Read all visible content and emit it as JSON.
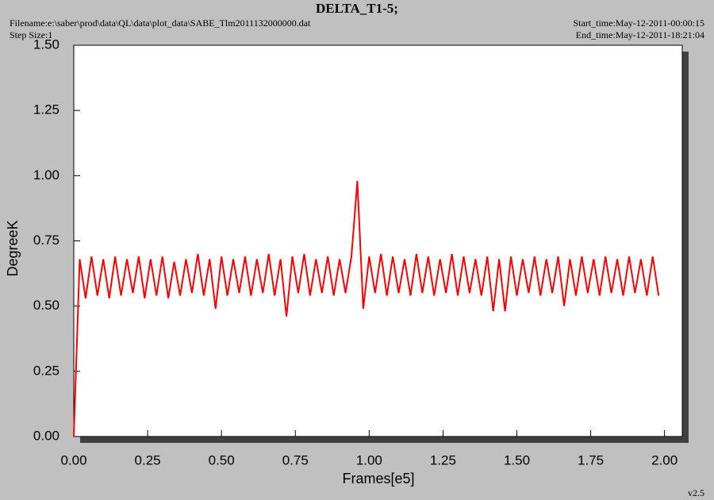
{
  "chart_data": {
    "type": "line",
    "title": "DELTA_T1-5;",
    "filename": "Filename:e:\\saber\\prod\\data\\QL\\data\\plot_data\\SABE_Tlm2011132000000.dat",
    "step_size": "Step Size:1",
    "start_time": "Start_time:May-12-2011-00:00:15",
    "end_time": "End_time:May-12-2011-18:21:04",
    "version": "v2.5",
    "x_label": "Frames[e5]",
    "y_label": "DegreeK",
    "color": "#ff0000",
    "x": [
      0.0,
      0.02,
      0.04,
      0.06,
      0.08,
      0.1,
      0.12,
      0.14,
      0.16,
      0.18,
      0.2,
      0.22,
      0.24,
      0.26,
      0.28,
      0.3,
      0.32,
      0.34,
      0.36,
      0.38,
      0.4,
      0.42,
      0.44,
      0.46,
      0.48,
      0.5,
      0.52,
      0.54,
      0.56,
      0.58,
      0.6,
      0.62,
      0.64,
      0.66,
      0.68,
      0.7,
      0.72,
      0.74,
      0.76,
      0.78,
      0.8,
      0.82,
      0.84,
      0.86,
      0.88,
      0.9,
      0.92,
      0.94,
      0.96,
      0.98,
      1.0,
      1.02,
      1.04,
      1.06,
      1.08,
      1.1,
      1.12,
      1.14,
      1.16,
      1.18,
      1.2,
      1.22,
      1.24,
      1.26,
      1.28,
      1.3,
      1.32,
      1.34,
      1.36,
      1.38,
      1.4,
      1.42,
      1.44,
      1.46,
      1.48,
      1.5,
      1.52,
      1.54,
      1.56,
      1.58,
      1.6,
      1.62,
      1.64,
      1.66,
      1.68,
      1.7,
      1.72,
      1.74,
      1.76,
      1.78,
      1.8,
      1.82,
      1.84,
      1.86,
      1.88,
      1.9,
      1.92,
      1.94,
      1.96,
      1.98
    ],
    "values": [
      0.0,
      0.68,
      0.53,
      0.69,
      0.54,
      0.68,
      0.53,
      0.69,
      0.54,
      0.68,
      0.55,
      0.69,
      0.53,
      0.68,
      0.54,
      0.69,
      0.53,
      0.67,
      0.54,
      0.68,
      0.55,
      0.7,
      0.54,
      0.68,
      0.49,
      0.69,
      0.54,
      0.68,
      0.55,
      0.69,
      0.54,
      0.68,
      0.55,
      0.7,
      0.54,
      0.68,
      0.46,
      0.69,
      0.55,
      0.7,
      0.54,
      0.68,
      0.55,
      0.69,
      0.54,
      0.68,
      0.55,
      0.69,
      0.98,
      0.49,
      0.69,
      0.55,
      0.7,
      0.54,
      0.69,
      0.55,
      0.68,
      0.54,
      0.7,
      0.55,
      0.69,
      0.54,
      0.68,
      0.55,
      0.7,
      0.54,
      0.69,
      0.55,
      0.68,
      0.54,
      0.69,
      0.48,
      0.68,
      0.48,
      0.69,
      0.54,
      0.68,
      0.55,
      0.69,
      0.54,
      0.68,
      0.55,
      0.69,
      0.5,
      0.68,
      0.54,
      0.69,
      0.55,
      0.68,
      0.54,
      0.69,
      0.55,
      0.68,
      0.54,
      0.69,
      0.55,
      0.68,
      0.54,
      0.69,
      0.54
    ],
    "xlim": [
      0,
      2.06
    ],
    "ylim": [
      0,
      1.5
    ],
    "xticks": [
      {
        "value": 0,
        "label": "0.00"
      },
      {
        "value": 0.25,
        "label": "0.25"
      },
      {
        "value": 0.5,
        "label": "0.50"
      },
      {
        "value": 0.75,
        "label": "0.75"
      },
      {
        "value": 1,
        "label": "1.00"
      },
      {
        "value": 1.25,
        "label": "1.25"
      },
      {
        "value": 1.5,
        "label": "1.50"
      },
      {
        "value": 1.75,
        "label": "1.75"
      },
      {
        "value": 2,
        "label": "2.00"
      }
    ],
    "yticks": [
      {
        "value": 0,
        "label": "0.00"
      },
      {
        "value": 0.25,
        "label": "0.25"
      },
      {
        "value": 0.5,
        "label": "0.50"
      },
      {
        "value": 0.75,
        "label": "0.75"
      },
      {
        "value": 1,
        "label": "1.00"
      },
      {
        "value": 1.25,
        "label": "1.25"
      },
      {
        "value": 1.5,
        "label": "1.50"
      }
    ]
  }
}
